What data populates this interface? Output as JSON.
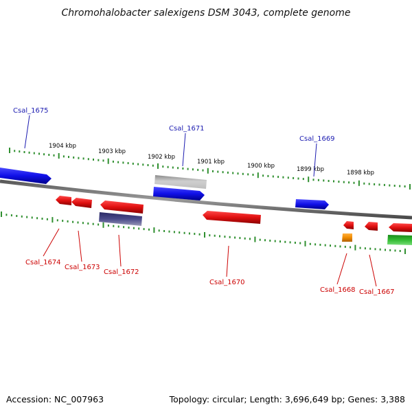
{
  "title": "Chromohalobacter salexigens DSM 3043, complete genome",
  "footer": {
    "accession": "Accession: NC_007963",
    "summary": "Topology: circular; Length: 3,696,649 bp; Genes: 3,388"
  },
  "colors": {
    "backbone": "#8a8a8a",
    "tick": "#2f8f2f",
    "forward": "#1010e8",
    "reverse": "#e01010",
    "pseudo": "#b0b0b0",
    "other": "#4a4a8a",
    "rna": "#f08c00",
    "misc": "#33bb33",
    "label_forward": "#1a1ab0",
    "label_reverse": "#cc0000"
  },
  "scale_labels": [
    "1904 kbp",
    "1903 kbp",
    "1902 kbp",
    "1901 kbp",
    "1900 kbp",
    "1899 kbp",
    "1898 kbp"
  ],
  "gene_labels": {
    "forward": [
      "Csal_1675",
      "Csal_1671",
      "Csal_1669"
    ],
    "reverse": [
      "Csal_1674",
      "Csal_1673",
      "Csal_1672",
      "Csal_1670",
      "Csal_1668",
      "Csal_1667"
    ]
  }
}
